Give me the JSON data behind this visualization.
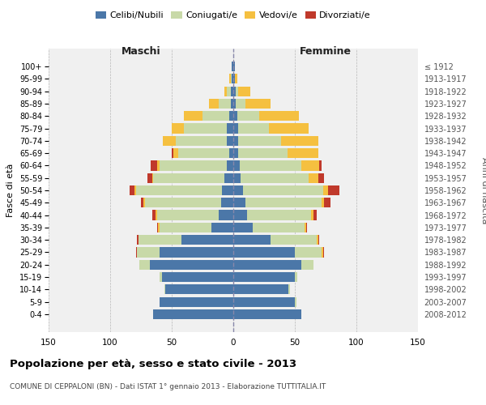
{
  "age_groups": [
    "100+",
    "95-99",
    "90-94",
    "85-89",
    "80-84",
    "75-79",
    "70-74",
    "65-69",
    "60-64",
    "55-59",
    "50-54",
    "45-49",
    "40-44",
    "35-39",
    "30-34",
    "25-29",
    "20-24",
    "15-19",
    "10-14",
    "5-9",
    "0-4"
  ],
  "birth_years": [
    "≤ 1912",
    "1913-1917",
    "1918-1922",
    "1923-1927",
    "1928-1932",
    "1933-1937",
    "1938-1942",
    "1943-1947",
    "1948-1952",
    "1953-1957",
    "1958-1962",
    "1963-1967",
    "1968-1972",
    "1973-1977",
    "1978-1982",
    "1983-1987",
    "1988-1992",
    "1993-1997",
    "1998-2002",
    "2003-2007",
    "2008-2012"
  ],
  "maschi": {
    "celibi": [
      1,
      1,
      2,
      2,
      3,
      5,
      5,
      3,
      5,
      7,
      9,
      10,
      12,
      18,
      42,
      60,
      68,
      58,
      55,
      60,
      65
    ],
    "coniugati": [
      0,
      1,
      3,
      10,
      22,
      35,
      42,
      42,
      55,
      58,
      70,
      62,
      50,
      42,
      35,
      18,
      8,
      2,
      1,
      0,
      0
    ],
    "vedovi": [
      0,
      1,
      2,
      8,
      15,
      10,
      10,
      4,
      2,
      1,
      1,
      1,
      1,
      1,
      0,
      0,
      0,
      0,
      0,
      0,
      0
    ],
    "divorziati": [
      0,
      0,
      0,
      0,
      0,
      0,
      0,
      1,
      5,
      4,
      4,
      2,
      3,
      1,
      1,
      1,
      0,
      0,
      0,
      0,
      0
    ]
  },
  "femmine": {
    "nubili": [
      1,
      1,
      2,
      2,
      3,
      4,
      4,
      4,
      5,
      6,
      8,
      10,
      11,
      16,
      30,
      50,
      55,
      50,
      45,
      50,
      55
    ],
    "coniugate": [
      0,
      0,
      2,
      8,
      18,
      25,
      35,
      40,
      50,
      55,
      65,
      62,
      52,
      42,
      38,
      22,
      10,
      2,
      1,
      1,
      0
    ],
    "vedove": [
      0,
      2,
      10,
      20,
      32,
      32,
      30,
      25,
      15,
      8,
      4,
      2,
      2,
      1,
      1,
      1,
      0,
      0,
      0,
      0,
      0
    ],
    "divorziate": [
      0,
      0,
      0,
      0,
      0,
      0,
      0,
      0,
      2,
      5,
      9,
      5,
      3,
      1,
      1,
      1,
      0,
      0,
      0,
      0,
      0
    ]
  },
  "color_celibi": "#4b77a8",
  "color_coniugati": "#c8d9a8",
  "color_vedovi": "#f5c040",
  "color_divorziati": "#c0392b",
  "xlim": 150,
  "title": "Popolazione per età, sesso e stato civile - 2013",
  "subtitle": "COMUNE DI CEPPALONI (BN) - Dati ISTAT 1° gennaio 2013 - Elaborazione TUTTITALIA.IT",
  "ylabel_left": "Fasce di età",
  "ylabel_right": "Anni di nascita",
  "xlabel_maschi": "Maschi",
  "xlabel_femmine": "Femmine",
  "plot_bg": "#ffffff",
  "axes_bg": "#f0f0f0"
}
